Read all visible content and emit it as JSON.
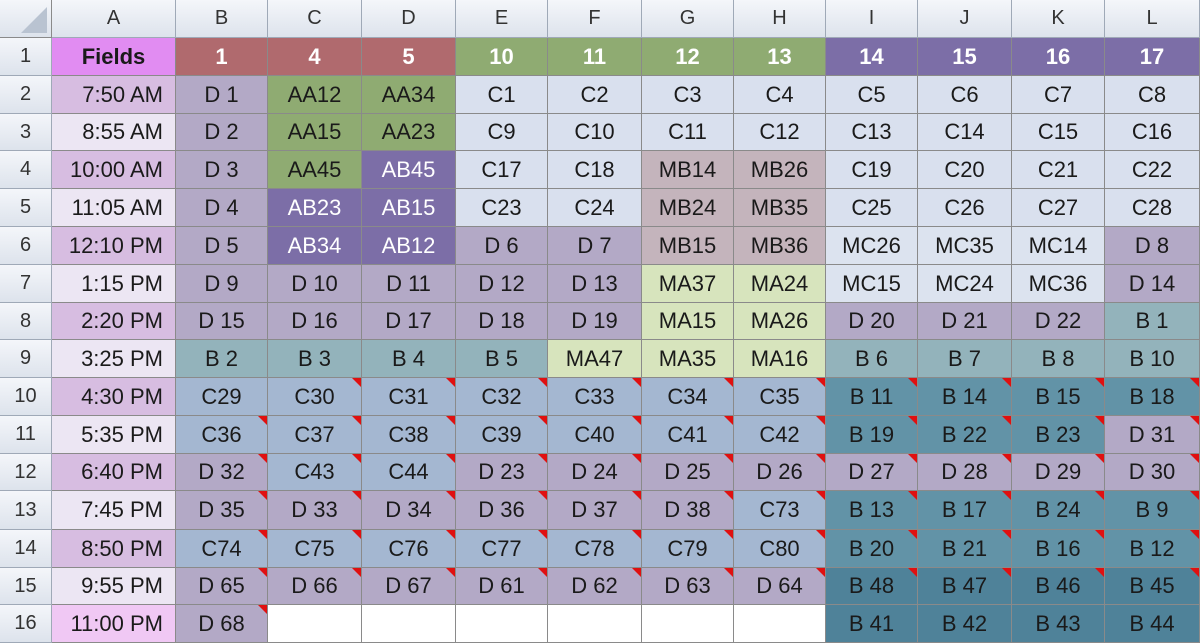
{
  "columns": [
    "A",
    "B",
    "C",
    "D",
    "E",
    "F",
    "G",
    "H",
    "I",
    "J",
    "K",
    "L"
  ],
  "rows": [
    "1",
    "2",
    "3",
    "4",
    "5",
    "6",
    "7",
    "8",
    "9",
    "10",
    "11",
    "12",
    "13",
    "14",
    "15",
    "16"
  ],
  "headerRow": [
    "Fields",
    "1",
    "4",
    "5",
    "10",
    "11",
    "12",
    "13",
    "14",
    "15",
    "16",
    "17"
  ],
  "times": [
    "7:50 AM",
    "8:55 AM",
    "10:00 AM",
    "11:05 AM",
    "12:10 PM",
    "1:15 PM",
    "2:20 PM",
    "3:25 PM",
    "4:30 PM",
    "5:35 PM",
    "6:40 PM",
    "7:45 PM",
    "8:50 PM",
    "9:55 PM",
    "11:00 PM"
  ],
  "cells": [
    [
      "D 1",
      "AA12",
      "AA34",
      "C1",
      "C2",
      "C3",
      "C4",
      "C5",
      "C6",
      "C7",
      "C8"
    ],
    [
      "D 2",
      "AA15",
      "AA23",
      "C9",
      "C10",
      "C11",
      "C12",
      "C13",
      "C14",
      "C15",
      "C16"
    ],
    [
      "D 3",
      "AA45",
      "AB45",
      "C17",
      "C18",
      "MB14",
      "MB26",
      "C19",
      "C20",
      "C21",
      "C22"
    ],
    [
      "D 4",
      "AB23",
      "AB15",
      "C23",
      "C24",
      "MB24",
      "MB35",
      "C25",
      "C26",
      "C27",
      "C28"
    ],
    [
      "D 5",
      "AB34",
      "AB12",
      "D 6",
      "D 7",
      "MB15",
      "MB36",
      "MC26",
      "MC35",
      "MC14",
      "D 8"
    ],
    [
      "D 9",
      "D 10",
      "D 11",
      "D 12",
      "D 13",
      "MA37",
      "MA24",
      "MC15",
      "MC24",
      "MC36",
      "D 14"
    ],
    [
      "D 15",
      "D 16",
      "D 17",
      "D 18",
      "D 19",
      "MA15",
      "MA26",
      "D 20",
      "D 21",
      "D 22",
      "B 1"
    ],
    [
      "B 2",
      "B 3",
      "B 4",
      "B 5",
      "MA47",
      "MA35",
      "MA16",
      "B 6",
      "B 7",
      "B 8",
      "B 10"
    ],
    [
      "C29",
      "C30",
      "C31",
      "C32",
      "C33",
      "C34",
      "C35",
      "B 11",
      "B 14",
      "B 15",
      "B 18"
    ],
    [
      "C36",
      "C37",
      "C38",
      "C39",
      "C40",
      "C41",
      "C42",
      "B 19",
      "B 22",
      "B 23",
      "D 31"
    ],
    [
      "D 32",
      "C43",
      "C44",
      "D 23",
      "D 24",
      "D 25",
      "D 26",
      "D 27",
      "D 28",
      "D 29",
      "D 30"
    ],
    [
      "D 35",
      "D 33",
      "D 34",
      "D 36",
      "D 37",
      "D 38",
      "C73",
      "B 13",
      "B 17",
      "B 24",
      "B 9"
    ],
    [
      "C74",
      "C75",
      "C76",
      "C77",
      "C78",
      "C79",
      "C80",
      "B 20",
      "B 21",
      "B 16",
      "B 12"
    ],
    [
      "D 65",
      "D 66",
      "D 67",
      "D 61",
      "D 62",
      "D 63",
      "D 64",
      "B 48",
      "B 47",
      "B 46",
      "B 45"
    ],
    [
      "D 68",
      "",
      "",
      "",
      "",
      "",
      "",
      "B 41",
      "B 42",
      "B 43",
      "B 44"
    ]
  ],
  "colors": {
    "D": "#b3a9c6",
    "C": "#d9e0ee",
    "Cblue": "#a4b7d1",
    "AA": "#8fab72",
    "AB": "#7c6ea7",
    "MB": "#c4b4bc",
    "MC": "#dce3ef",
    "MA": "#d7e4bd",
    "Bteal": "#93b3bb",
    "Bdark": "#6293a7",
    "Bdarker": "#4f8299",
    "time1": "#d7bde1",
    "time2": "#ece6f3",
    "fieldsHeader": "#e18cf2",
    "hdrRed": "#b06a6e",
    "hdrGreen": "#8fab72",
    "hdrPurple": "#7c6ea7",
    "empty": "#ffffff",
    "flag": "#e01010"
  }
}
